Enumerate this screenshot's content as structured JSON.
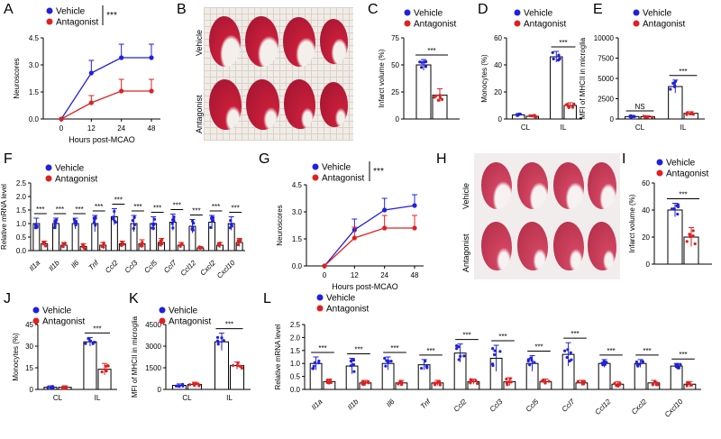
{
  "colors": {
    "vehicle": "#2020e0",
    "antagonist": "#e02020",
    "axis": "#000000"
  },
  "panels": {
    "A": {
      "label": "A"
    },
    "B": {
      "label": "B",
      "rows": [
        "Vehicle",
        "Antagonist"
      ]
    },
    "C": {
      "label": "C"
    },
    "D": {
      "label": "D"
    },
    "E": {
      "label": "E"
    },
    "F": {
      "label": "F"
    },
    "G": {
      "label": "G"
    },
    "H": {
      "label": "H",
      "rows": [
        "Vehicle",
        "Antagonist"
      ]
    },
    "I": {
      "label": "I"
    },
    "J": {
      "label": "J"
    },
    "K": {
      "label": "K"
    },
    "L": {
      "label": "L"
    }
  },
  "chart_data": [
    {
      "id": "A",
      "type": "line",
      "legend": [
        "Vehicle",
        "Antagonist"
      ],
      "sig": "***",
      "x": [
        0,
        12,
        24,
        48
      ],
      "xticks": [
        "0",
        "12",
        "24",
        "48"
      ],
      "xlabel": "Hours post-MCAO",
      "ylabel": "Neuroscores",
      "ylim": [
        0,
        4.5
      ],
      "yticks": [
        "0.0",
        "1.5",
        "3.0",
        "4.5"
      ],
      "series": [
        {
          "name": "Vehicle",
          "values": [
            0,
            2.55,
            3.4,
            3.4
          ],
          "err": [
            0,
            0.7,
            0.75,
            0.75
          ]
        },
        {
          "name": "Antagonist",
          "values": [
            0,
            0.9,
            1.55,
            1.55
          ],
          "err": [
            0,
            0.4,
            0.65,
            0.65
          ]
        }
      ]
    },
    {
      "id": "C",
      "type": "bar",
      "legend": [
        "Vehicle",
        "Antagonist"
      ],
      "sig": "***",
      "ylabel": "Infarct volume (%)",
      "ylim": [
        0,
        75
      ],
      "yticks": [
        "0",
        "25",
        "50",
        "75"
      ],
      "categories": [
        ""
      ],
      "series": [
        {
          "name": "Vehicle",
          "values": [
            50
          ],
          "err": [
            5
          ]
        },
        {
          "name": "Antagonist",
          "values": [
            22
          ],
          "err": [
            6
          ]
        }
      ]
    },
    {
      "id": "D",
      "type": "bar",
      "legend": [
        "Vehicle",
        "Antagonist"
      ],
      "sig": "***",
      "ylabel": "Monocytes (%)",
      "ylim": [
        0,
        60
      ],
      "yticks": [
        "0",
        "20",
        "40",
        "60"
      ],
      "categories": [
        "CL",
        "IL"
      ],
      "series": [
        {
          "name": "Vehicle",
          "values": [
            3,
            46
          ],
          "err": [
            1,
            4
          ]
        },
        {
          "name": "Antagonist",
          "values": [
            2,
            10
          ],
          "err": [
            1,
            2
          ]
        }
      ]
    },
    {
      "id": "E",
      "type": "bar",
      "legend": [
        "Vehicle",
        "Antagonist"
      ],
      "sig": "***",
      "sig2": "NS",
      "ylabel": "MFI of MHCII in microglia",
      "ylim": [
        0,
        10000
      ],
      "yticks": [
        "0",
        "2500",
        "5000",
        "7500",
        "10000"
      ],
      "categories": [
        "CL",
        "IL"
      ],
      "series": [
        {
          "name": "Vehicle",
          "values": [
            300,
            4000
          ],
          "err": [
            150,
            800
          ]
        },
        {
          "name": "Antagonist",
          "values": [
            280,
            700
          ],
          "err": [
            120,
            200
          ]
        }
      ]
    },
    {
      "id": "F",
      "type": "bar",
      "legend": [
        "Vehicle",
        "Antagonist"
      ],
      "sig": "***",
      "ylabel": "Relative mRNA level",
      "ylim": [
        0,
        2.5
      ],
      "yticks": [
        "0.0",
        "0.5",
        "1.0",
        "1.5",
        "2.0",
        "2.5"
      ],
      "categories": [
        "Il1a",
        "Il1b",
        "Il6",
        "Tnf",
        "Ccl2",
        "Ccl3",
        "Ccl5",
        "Ccl7",
        "Ccl12",
        "Cxcl2",
        "Cxcl10"
      ],
      "series": [
        {
          "name": "Vehicle",
          "values": [
            1,
            1,
            1,
            1,
            1.25,
            1,
            1,
            1.05,
            0.9,
            1.05,
            1
          ],
          "err": [
            0.2,
            0.2,
            0.2,
            0.3,
            0.3,
            0.3,
            0.25,
            0.3,
            0.25,
            0.25,
            0.25
          ]
        },
        {
          "name": "Antagonist",
          "values": [
            0.25,
            0.2,
            0.15,
            0.2,
            0.25,
            0.25,
            0.3,
            0.2,
            0.1,
            0.2,
            0.3
          ],
          "err": [
            0.1,
            0.1,
            0.1,
            0.1,
            0.1,
            0.15,
            0.15,
            0.1,
            0.05,
            0.1,
            0.15
          ]
        }
      ]
    },
    {
      "id": "G",
      "type": "line",
      "legend": [
        "Vehicle",
        "Antagonist"
      ],
      "sig": "***",
      "x": [
        0,
        12,
        24,
        48
      ],
      "xticks": [
        "0",
        "12",
        "24",
        "48"
      ],
      "xlabel": "Hours post-MCAO",
      "ylabel": "Neuroscores",
      "ylim": [
        0,
        4.5
      ],
      "yticks": [
        "0.0",
        "1.5",
        "3.0",
        "4.5"
      ],
      "series": [
        {
          "name": "Vehicle",
          "values": [
            0,
            2,
            3.1,
            3.35
          ],
          "err": [
            0,
            0.6,
            0.65,
            0.6
          ]
        },
        {
          "name": "Antagonist",
          "values": [
            0,
            1.55,
            2.1,
            2.1
          ],
          "err": [
            0,
            0.6,
            0.7,
            0.7
          ]
        }
      ]
    },
    {
      "id": "I",
      "type": "bar",
      "legend": [
        "Vehicle",
        "Antagonist"
      ],
      "sig": "***",
      "ylabel": "Infarct volume (%)",
      "ylim": [
        0,
        60
      ],
      "yticks": [
        "0",
        "20",
        "40",
        "60"
      ],
      "categories": [
        ""
      ],
      "series": [
        {
          "name": "Vehicle",
          "values": [
            40
          ],
          "err": [
            5
          ]
        },
        {
          "name": "Antagonist",
          "values": [
            20
          ],
          "err": [
            7
          ]
        }
      ]
    },
    {
      "id": "J",
      "type": "bar",
      "legend": [
        "Vehicle",
        "Antagonist"
      ],
      "sig": "***",
      "ylabel": "Monocytes (%)",
      "ylim": [
        0,
        45
      ],
      "yticks": [
        "0",
        "15",
        "30",
        "45"
      ],
      "categories": [
        "CL",
        "IL"
      ],
      "series": [
        {
          "name": "Vehicle",
          "values": [
            1.5,
            33
          ],
          "err": [
            1,
            3
          ]
        },
        {
          "name": "Antagonist",
          "values": [
            1.5,
            14
          ],
          "err": [
            1,
            4
          ]
        }
      ]
    },
    {
      "id": "K",
      "type": "bar",
      "legend": [
        "Vehicle",
        "Antagonist"
      ],
      "sig": "***",
      "ylabel": "MFI of MHCII in microglia",
      "ylim": [
        0,
        4500
      ],
      "yticks": [
        "0",
        "1500",
        "3000",
        "4500"
      ],
      "categories": [
        "CL",
        "IL"
      ],
      "series": [
        {
          "name": "Vehicle",
          "values": [
            280,
            3300
          ],
          "err": [
            100,
            600
          ]
        },
        {
          "name": "Antagonist",
          "values": [
            350,
            1650
          ],
          "err": [
            150,
            250
          ]
        }
      ]
    },
    {
      "id": "L",
      "type": "bar",
      "legend": [
        "Vehicle",
        "Antagonist"
      ],
      "sig": "***",
      "ylabel": "Relative mRNA level",
      "ylim": [
        0,
        2.5
      ],
      "yticks": [
        "0.0",
        "0.5",
        "1.0",
        "1.5",
        "2.0",
        "2.5"
      ],
      "categories": [
        "Il1a",
        "Il1b",
        "Il6",
        "Tnf",
        "Ccl2",
        "Ccl3",
        "Ccl5",
        "Ccl7",
        "Ccl12",
        "Cxcl2",
        "Cxcl10"
      ],
      "series": [
        {
          "name": "Vehicle",
          "values": [
            1,
            0.9,
            1,
            0.95,
            1.4,
            1.2,
            1,
            1.35,
            1,
            1,
            0.9
          ],
          "err": [
            0.25,
            0.3,
            0.25,
            0.2,
            0.35,
            0.5,
            0.3,
            0.45,
            0.15,
            0.15,
            0.1
          ]
        },
        {
          "name": "Antagonist",
          "values": [
            0.3,
            0.25,
            0.25,
            0.25,
            0.3,
            0.3,
            0.3,
            0.25,
            0.2,
            0.25,
            0.2
          ],
          "err": [
            0.1,
            0.1,
            0.1,
            0.1,
            0.1,
            0.15,
            0.1,
            0.1,
            0.1,
            0.1,
            0.1
          ]
        }
      ]
    }
  ]
}
